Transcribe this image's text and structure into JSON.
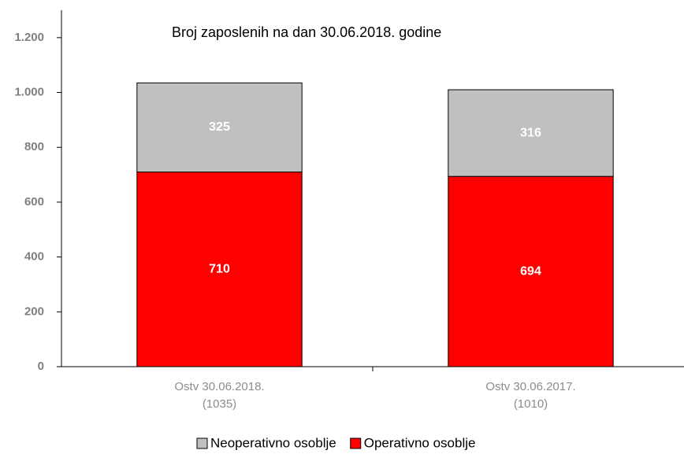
{
  "chart_data": {
    "type": "stacked_bar",
    "title": "Broj zaposlenih na dan 30.06.2018. godine",
    "categories": [
      [
        "Ostv 30.06.2018.",
        "(1035)"
      ],
      [
        "Ostv 30.06.2017.",
        "(1010)"
      ]
    ],
    "series": [
      {
        "name": "Operativno osoblje",
        "color": "#ff0000",
        "values": [
          710,
          694
        ]
      },
      {
        "name": "Neoperativno osoblje",
        "color": "#c0c0c0",
        "values": [
          325,
          316
        ]
      }
    ],
    "ylim": [
      0,
      1300
    ],
    "yticks": [
      0,
      200,
      400,
      600,
      800,
      {
        "value": 1000,
        "label": "1.000"
      },
      {
        "value": 1200,
        "label": "1.200"
      }
    ],
    "grid": false
  }
}
